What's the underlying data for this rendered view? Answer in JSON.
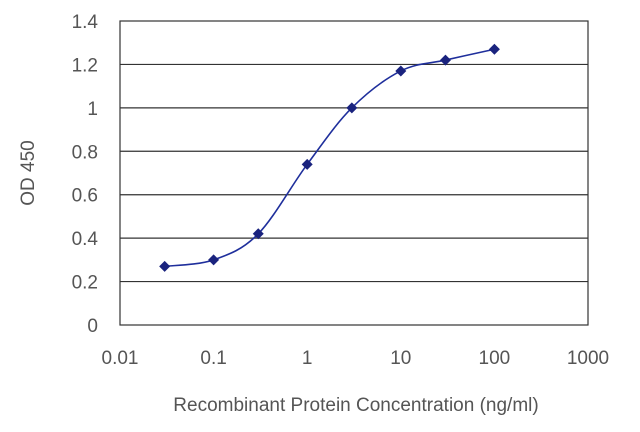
{
  "chart_data": {
    "type": "line",
    "xlabel": "Recombinant Protein Concentration (ng/ml)",
    "ylabel": "OD 450",
    "x_scale": "log",
    "xlim": [
      0.01,
      1000
    ],
    "ylim": [
      0,
      1.4
    ],
    "x_ticks": [
      "0.01",
      "0.1",
      "1",
      "10",
      "100",
      "1000"
    ],
    "y_ticks": [
      "0",
      "0.2",
      "0.4",
      "0.6",
      "0.8",
      "1",
      "1.2",
      "1.4"
    ],
    "grid": "horizontal",
    "series": [
      {
        "x": [
          0.03,
          0.1,
          0.3,
          1,
          3,
          10,
          30,
          100
        ],
        "y": [
          0.27,
          0.3,
          0.42,
          0.74,
          1.0,
          1.17,
          1.22,
          1.27
        ]
      }
    ],
    "colors": {
      "series": "#1f2f9c",
      "marker": "#1a237e",
      "grid": "#333333",
      "frame": "#333333"
    }
  }
}
